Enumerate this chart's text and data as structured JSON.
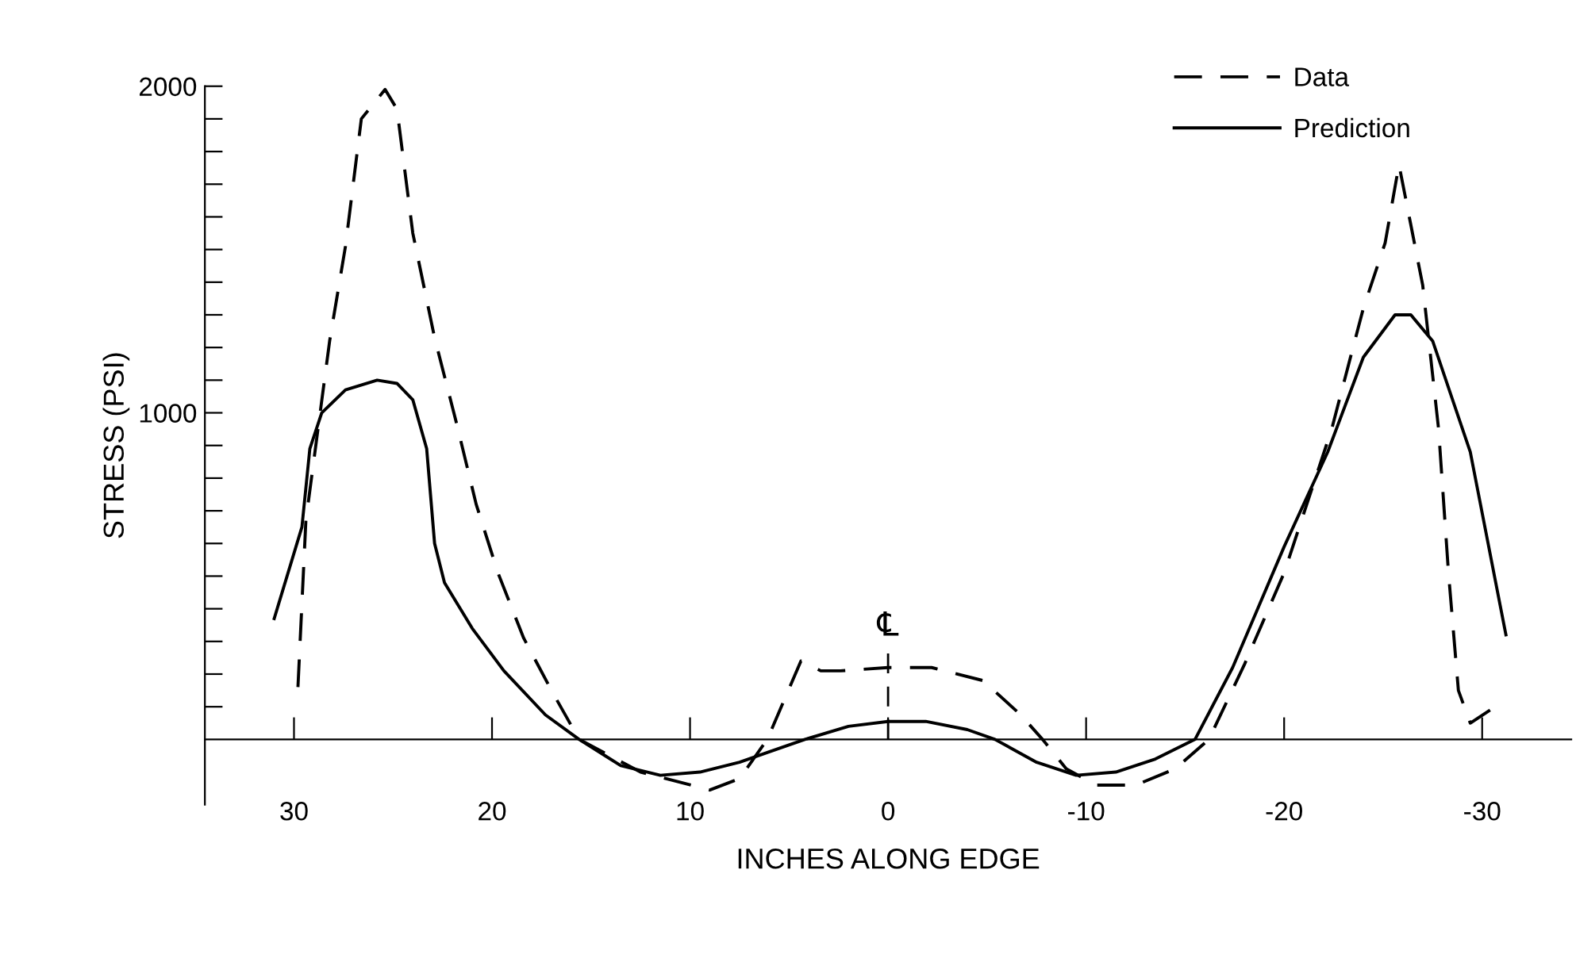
{
  "chart_data": {
    "type": "line",
    "xlabel": "INCHES ALONG EDGE",
    "ylabel": "STRESS (PSI)",
    "xlim": [
      34.5,
      -34.5
    ],
    "xticks": [
      30,
      20,
      10,
      0,
      -10,
      -20,
      -30
    ],
    "ylim": [
      -200,
      2000
    ],
    "yticks": [
      {
        "value": 100,
        "label": null
      },
      {
        "value": 200,
        "label": null
      },
      {
        "value": 300,
        "label": null
      },
      {
        "value": 400,
        "label": null
      },
      {
        "value": 500,
        "label": null
      },
      {
        "value": 600,
        "label": null
      },
      {
        "value": 700,
        "label": null
      },
      {
        "value": 800,
        "label": null
      },
      {
        "value": 900,
        "label": null
      },
      1000,
      {
        "value": 1100,
        "label": null
      },
      {
        "value": 1200,
        "label": null
      },
      {
        "value": 1300,
        "label": null
      },
      {
        "value": 1400,
        "label": null
      },
      {
        "value": 1500,
        "label": null
      },
      {
        "value": 1600,
        "label": null
      },
      {
        "value": 1700,
        "label": null
      },
      {
        "value": 1800,
        "label": null
      },
      {
        "value": 1900,
        "label": null
      },
      2000
    ],
    "grid": false,
    "legend": "top right",
    "marker": "none",
    "ref_lines": [
      {
        "axis": "x",
        "value": 0,
        "label": "℄",
        "line_style": "dashed",
        "color": "#000000"
      }
    ],
    "series": [
      {
        "name": "Data",
        "color": "#000000",
        "line_style": "dashed",
        "x": [
          29.8,
          29.4,
          28.2,
          27.4,
          26.6,
          25.4,
          24.8,
          24.0,
          22.9,
          21.8,
          20.8,
          19.7,
          18.4,
          17.0,
          15.6,
          12.5,
          9.0,
          7.5,
          6.1,
          4.4,
          3.4,
          2.4,
          0,
          -2.2,
          -4.8,
          -6.7,
          -7.8,
          -9.0,
          -10.5,
          -12.5,
          -14.5,
          -16.2,
          -18.0,
          -20.0,
          -22.4,
          -24.0,
          -25.1,
          -25.8,
          -27.0,
          -27.8,
          -28.3,
          -28.8,
          -29.4,
          -30.4
        ],
        "values": [
          160,
          670,
          1220,
          1510,
          1900,
          1990,
          1930,
          1550,
          1230,
          970,
          720,
          510,
          310,
          150,
          0,
          -100,
          -155,
          -120,
          0,
          240,
          210,
          210,
          220,
          220,
          180,
          75,
          0,
          -90,
          -140,
          -140,
          -90,
          0,
          230,
          510,
          950,
          1320,
          1520,
          1760,
          1390,
          950,
          510,
          150,
          50,
          90
        ]
      },
      {
        "name": "Prediction",
        "color": "#000000",
        "line_style": "solid",
        "x": [
          31.0,
          29.6,
          29.2,
          28.6,
          27.4,
          25.8,
          24.8,
          24.0,
          23.3,
          22.9,
          22.4,
          21.0,
          19.4,
          17.3,
          15.6,
          13.5,
          11.5,
          9.5,
          7.5,
          6.1,
          4.2,
          2.0,
          0,
          -1.9,
          -4.0,
          -5.4,
          -7.5,
          -9.5,
          -11.5,
          -13.5,
          -15.5,
          -17.4,
          -20.0,
          -22.2,
          -24.0,
          -25.6,
          -26.4,
          -27.5,
          -29.4,
          -31.2
        ],
        "values": [
          370,
          650,
          890,
          1000,
          1070,
          1100,
          1090,
          1040,
          890,
          600,
          480,
          340,
          210,
          75,
          0,
          -80,
          -110,
          -100,
          -70,
          -40,
          0,
          40,
          55,
          55,
          30,
          0,
          -70,
          -110,
          -100,
          -60,
          0,
          220,
          590,
          880,
          1170,
          1300,
          1300,
          1220,
          880,
          320
        ]
      }
    ]
  }
}
